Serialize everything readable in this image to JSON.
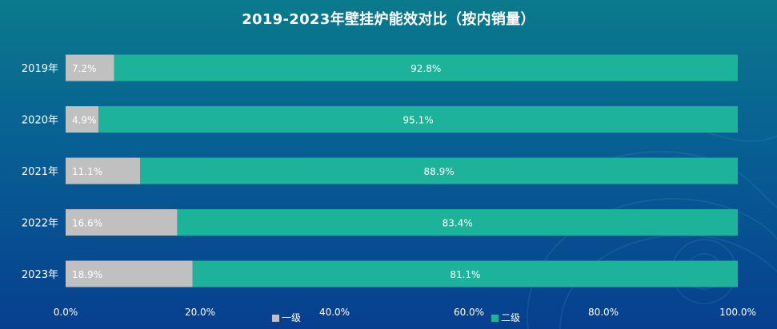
{
  "chart_data": {
    "type": "bar",
    "orientation": "horizontal",
    "stacked": true,
    "title": "2019-2023年壁挂炉能效对比（按内销量）",
    "categories": [
      "2019年",
      "2020年",
      "2021年",
      "2022年",
      "2023年"
    ],
    "series": [
      {
        "name": "一级",
        "color": "#c0c0c0",
        "values": [
          7.2,
          4.9,
          11.1,
          16.6,
          18.9
        ],
        "labels": [
          "7.2%",
          "4.9%",
          "11.1%",
          "16.6%",
          "18.9%"
        ]
      },
      {
        "name": "二级",
        "color": "#1db39a",
        "values": [
          92.8,
          95.1,
          88.9,
          83.4,
          81.1
        ],
        "labels": [
          "92.8%",
          "95.1%",
          "88.9%",
          "83.4%",
          "81.1%"
        ]
      }
    ],
    "xlim": [
      0,
      100
    ],
    "xticks": [
      "0.0%",
      "20.0%",
      "40.0%",
      "60.0%",
      "80.0%",
      "100.0%"
    ],
    "legend_position": "bottom",
    "grid": false
  }
}
